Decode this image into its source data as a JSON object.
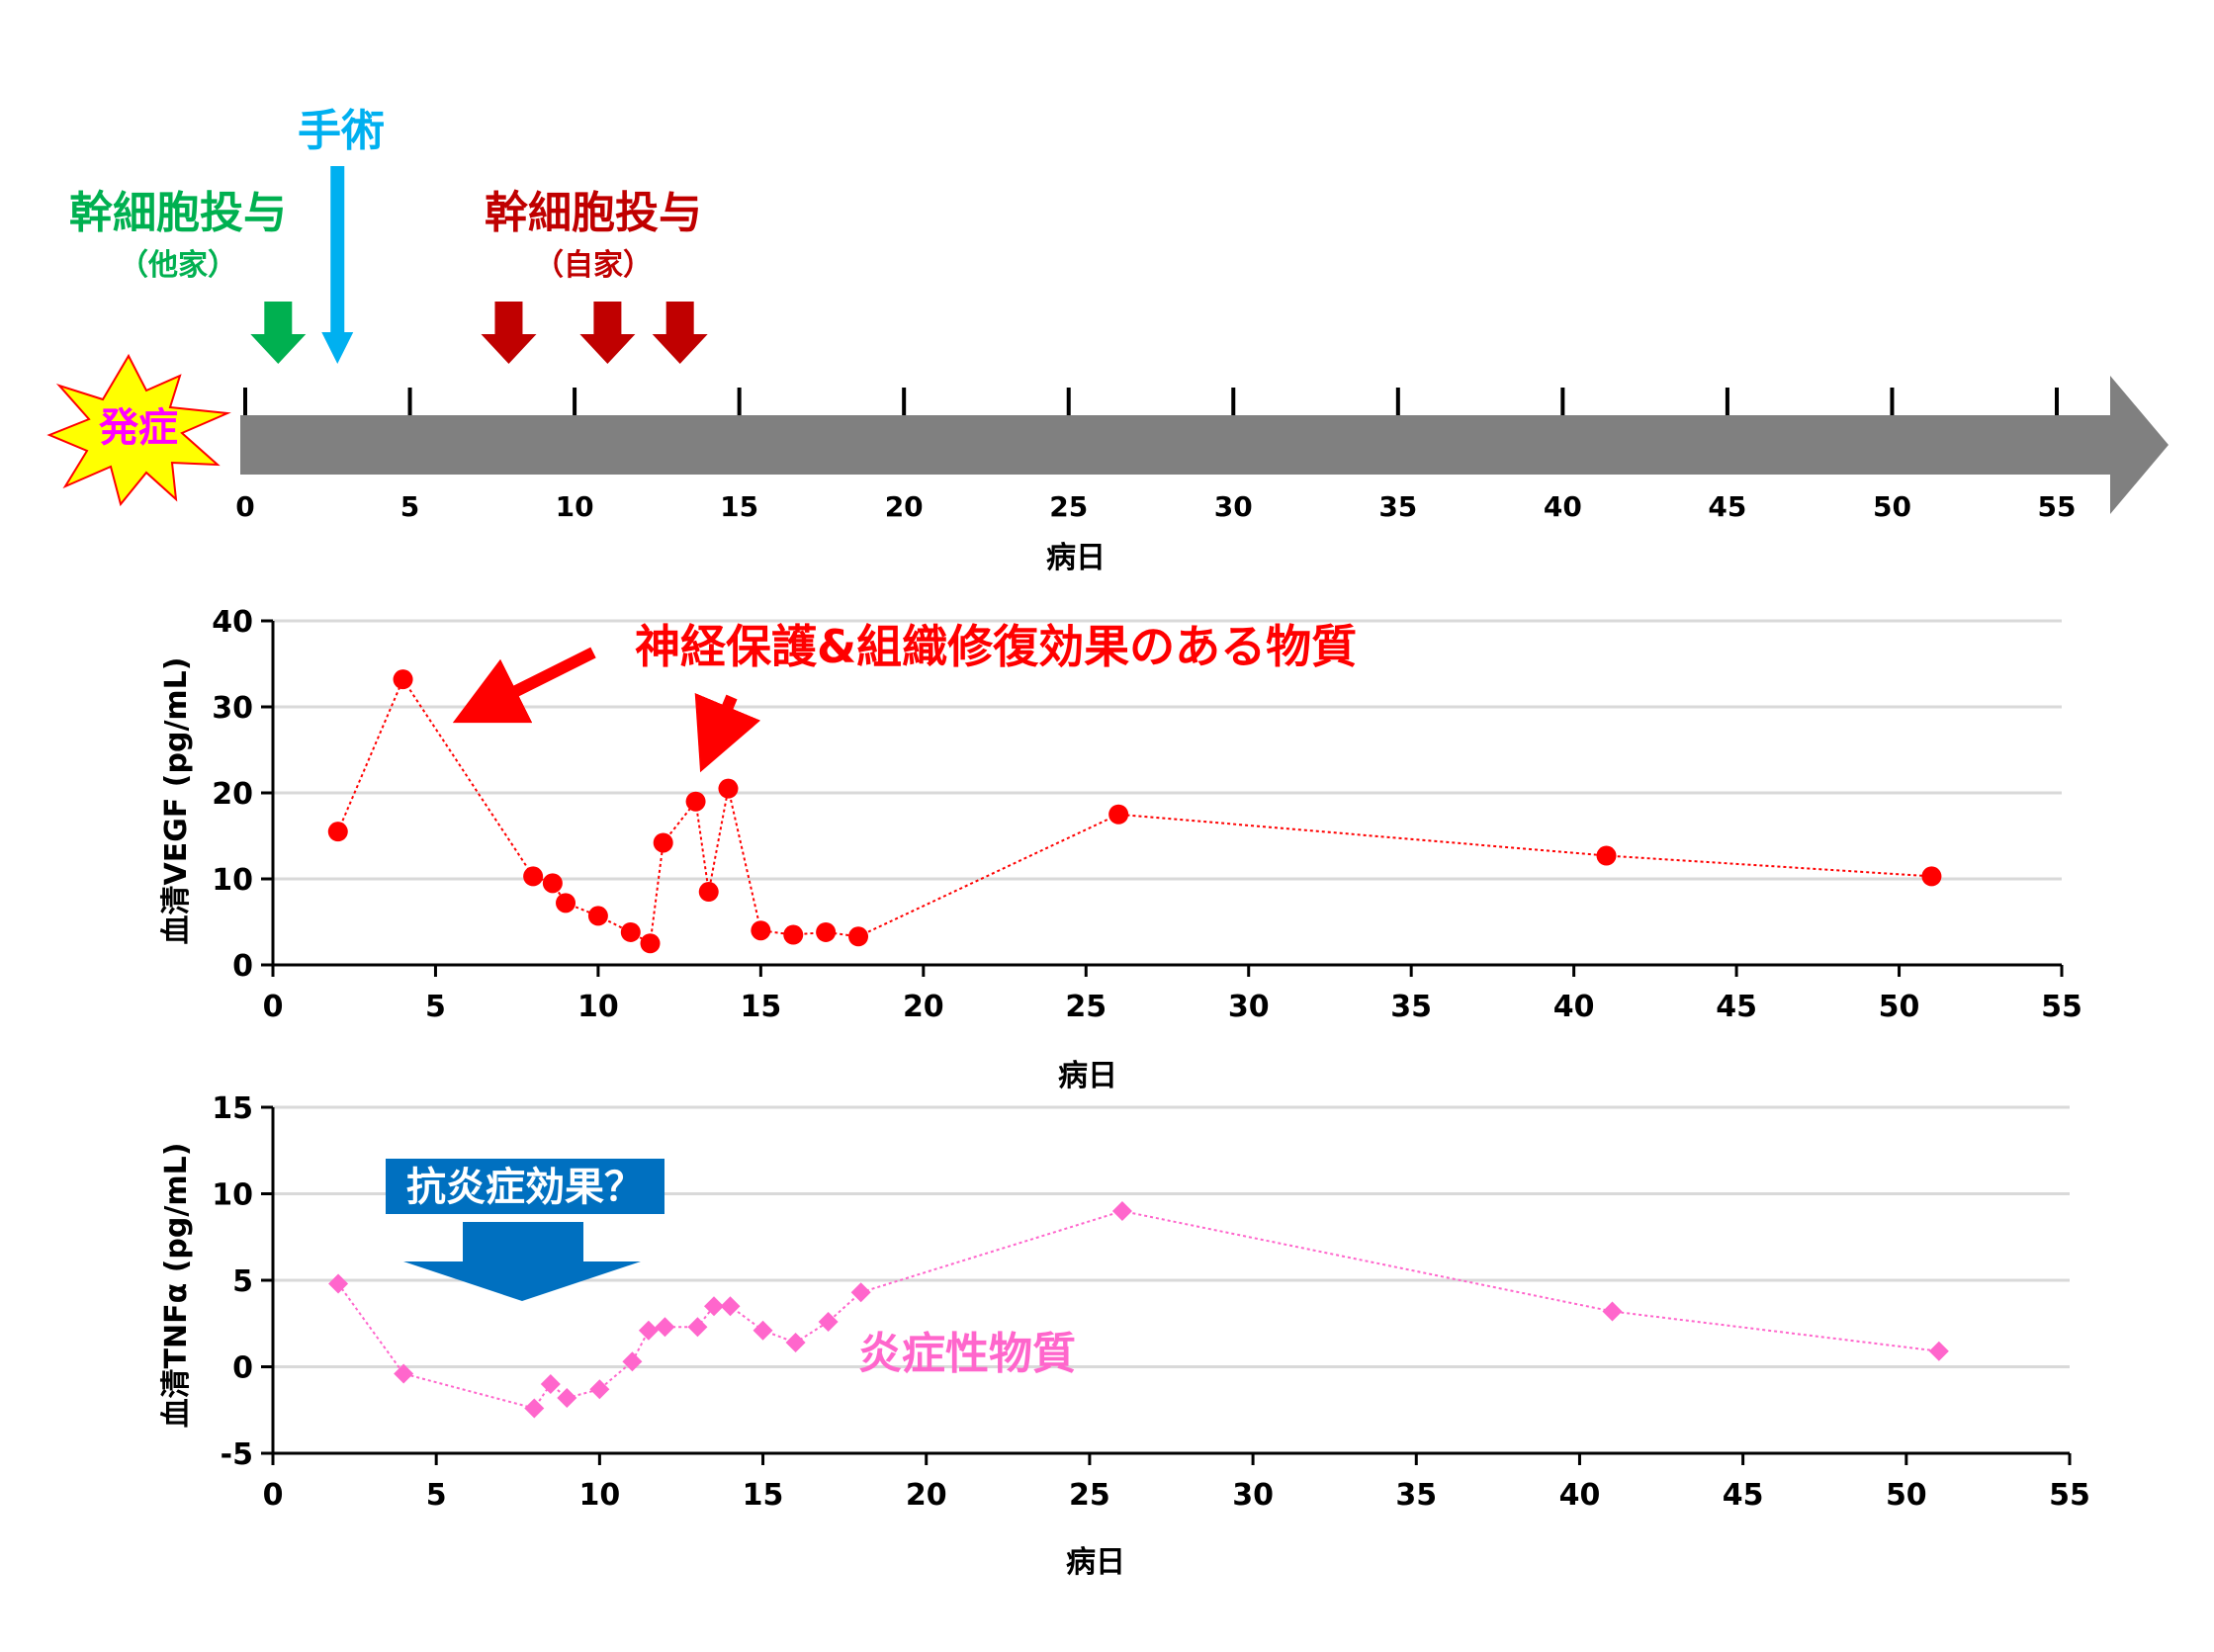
{
  "timeline": {
    "onset_label": "発症",
    "axis_label": "病日",
    "ticks": [
      "0",
      "5",
      "10",
      "15",
      "20",
      "25",
      "30",
      "35",
      "40",
      "45",
      "50",
      "55"
    ],
    "events": [
      {
        "label": "幹細胞投与",
        "sublabel": "（他家）",
        "color": "#00b050",
        "days": [
          1
        ]
      },
      {
        "label": "手術",
        "sublabel": "",
        "color": "#00b0f0",
        "days": [
          2.8
        ]
      },
      {
        "label": "幹細胞投与",
        "sublabel": "（自家）",
        "color": "#c00000",
        "days": [
          8,
          11,
          13.2
        ]
      }
    ],
    "colors": {
      "bar": "#808080",
      "onset_burst": "#ffff00",
      "onset_text": "#ff00ff"
    }
  },
  "annotations": {
    "vegf_note": "神経保護&組織修復効果のある物質",
    "tnf_note": "抗炎症効果？",
    "tnf_series_label": "炎症性物質",
    "colors": {
      "vegf_note": "#ff0000",
      "tnf_note_bg": "#0070c0",
      "tnf_series_label": "#ff66cc"
    }
  },
  "chart_data": [
    {
      "type": "line",
      "ylabel": "血清VEGF (pg/mL)",
      "xlabel": "病日",
      "xlim": [
        0,
        55
      ],
      "ylim": [
        0,
        40
      ],
      "x_ticks": [
        "0",
        "5",
        "10",
        "15",
        "20",
        "25",
        "30",
        "35",
        "40",
        "45",
        "50",
        "55"
      ],
      "y_ticks": [
        "0",
        "10",
        "20",
        "30",
        "40"
      ],
      "grid": true,
      "marker": "circle",
      "color": "#ff0000",
      "series": [
        {
          "x": [
            2,
            4,
            8,
            8.6,
            9,
            10,
            11,
            11.6,
            12,
            13,
            13.4,
            14,
            15,
            16,
            17,
            18,
            26,
            41,
            51
          ],
          "y": [
            15.5,
            33.2,
            10.3,
            9.5,
            7.2,
            5.7,
            3.8,
            2.5,
            14.2,
            19,
            8.5,
            20.5,
            4,
            3.5,
            3.8,
            3.3,
            17.5,
            12.7,
            10.3
          ]
        }
      ]
    },
    {
      "type": "line",
      "ylabel": "血清TNFα (pg/mL)",
      "xlabel": "病日",
      "xlim": [
        0,
        55
      ],
      "ylim": [
        -5,
        15
      ],
      "x_ticks": [
        "0",
        "5",
        "10",
        "15",
        "20",
        "25",
        "30",
        "35",
        "40",
        "45",
        "50",
        "55"
      ],
      "y_ticks": [
        "-5",
        "0",
        "5",
        "10",
        "15"
      ],
      "grid": true,
      "marker": "diamond",
      "color": "#ff66cc",
      "series": [
        {
          "x": [
            2,
            4,
            8,
            8.5,
            9,
            10,
            11,
            11.5,
            12,
            13,
            13.5,
            14,
            15,
            16,
            17,
            18,
            26,
            41,
            51
          ],
          "y": [
            4.8,
            -0.4,
            -2.4,
            -1,
            -1.8,
            -1.3,
            0.3,
            2.1,
            2.3,
            2.3,
            3.5,
            3.5,
            2.1,
            1.4,
            2.6,
            4.3,
            9,
            3.2,
            0.9
          ]
        }
      ]
    }
  ]
}
